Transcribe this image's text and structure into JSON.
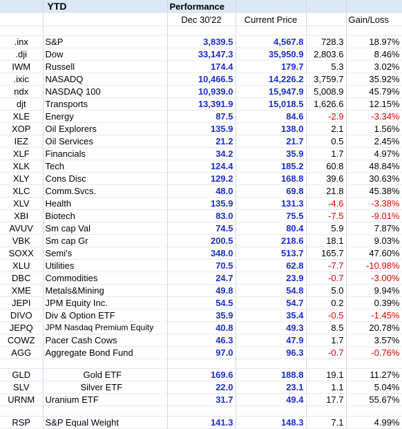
{
  "header": {
    "title": "YTD",
    "performance": "Performance",
    "col_start": "Dec 30'22",
    "col_current": "Current Price",
    "col_gainloss": "Gain/Loss"
  },
  "rows": [
    {
      "ticker": ".inx",
      "name": "S&P",
      "start": "3,839.5",
      "current": "4,567.8",
      "change": "728.3",
      "pct": "18.97%"
    },
    {
      "ticker": ".dji",
      "name": "Dow",
      "start": "33,147.3",
      "current": "35,950.9",
      "change": "2,803.6",
      "pct": "8.46%"
    },
    {
      "ticker": "IWM",
      "name": "Russell",
      "start": "174.4",
      "current": "179.7",
      "change": "5.3",
      "pct": "3.02%"
    },
    {
      "ticker": ".ixic",
      "name": "NASADQ",
      "start": "10,466.5",
      "current": "14,226.2",
      "change": "3,759.7",
      "pct": "35.92%"
    },
    {
      "ticker": "ndx",
      "name": "NASDAQ 100",
      "start": "10,939.0",
      "current": "15,947.9",
      "change": "5,008.9",
      "pct": "45.79%"
    },
    {
      "ticker": "djt",
      "name": "Transports",
      "start": "13,391.9",
      "current": "15,018.5",
      "change": "1,626.6",
      "pct": "12.15%"
    },
    {
      "ticker": "XLE",
      "name": "Energy",
      "start": "87.5",
      "current": "84.6",
      "change": "-2.9",
      "pct": "-3.34%"
    },
    {
      "ticker": "XOP",
      "name": "Oil Explorers",
      "start": "135.9",
      "current": "138.0",
      "change": "2.1",
      "pct": "1.56%"
    },
    {
      "ticker": "IEZ",
      "name": "Oil Services",
      "start": "21.2",
      "current": "21.7",
      "change": "0.5",
      "pct": "2.45%"
    },
    {
      "ticker": "XLF",
      "name": "Financials",
      "start": "34.2",
      "current": "35.9",
      "change": "1.7",
      "pct": "4.97%"
    },
    {
      "ticker": "XLK",
      "name": "Tech",
      "start": "124.4",
      "current": "185.2",
      "change": "60.8",
      "pct": "48.84%"
    },
    {
      "ticker": "XLY",
      "name": "Cons Disc",
      "start": "129.2",
      "current": "168.8",
      "change": "39.6",
      "pct": "30.63%"
    },
    {
      "ticker": "XLC",
      "name": "Comm.Svcs.",
      "start": "48.0",
      "current": "69.8",
      "change": "21.8",
      "pct": "45.38%"
    },
    {
      "ticker": "XLV",
      "name": "Health",
      "start": "135.9",
      "current": "131.3",
      "change": "-4.6",
      "pct": "-3.38%"
    },
    {
      "ticker": "XBI",
      "name": "Biotech",
      "start": "83.0",
      "current": "75.5",
      "change": "-7.5",
      "pct": "-9.01%"
    },
    {
      "ticker": "AVUV",
      "name": "Sm cap Val",
      "start": "74.5",
      "current": "80.4",
      "change": "5.9",
      "pct": "7.87%"
    },
    {
      "ticker": "VBK",
      "name": "Sm cap Gr",
      "start": "200.5",
      "current": "218.6",
      "change": "18.1",
      "pct": "9.03%"
    },
    {
      "ticker": "SOXX",
      "name": "Semi's",
      "start": "348.0",
      "current": "513.7",
      "change": "165.7",
      "pct": "47.60%"
    },
    {
      "ticker": "XLU",
      "name": "Utilities",
      "start": "70.5",
      "current": "62.8",
      "change": "-7.7",
      "pct": "-10.98%"
    },
    {
      "ticker": "DBC",
      "name": "Commodities",
      "start": "24.7",
      "current": "23.9",
      "change": "-0.7",
      "pct": "-3.00%"
    },
    {
      "ticker": "XME",
      "name": "Metals&Mining",
      "start": "49.8",
      "current": "54.8",
      "change": "5.0",
      "pct": "9.94%"
    },
    {
      "ticker": "JEPI",
      "name": "JPM  Equity Inc.",
      "start": "54.5",
      "current": "54.7",
      "change": "0.2",
      "pct": "0.39%"
    },
    {
      "ticker": "DIVO",
      "name": "Div & Option ETF",
      "start": "35.9",
      "current": "35.4",
      "change": "-0.5",
      "pct": "-1.45%"
    },
    {
      "ticker": "JEPQ",
      "name": "JPM Nasdaq Premium Equity",
      "start": "40.8",
      "current": "49.3",
      "change": "8.5",
      "pct": "20.78%"
    },
    {
      "ticker": "COWZ",
      "name": "Pacer Cash Cows",
      "start": "46.3",
      "current": "47.9",
      "change": "1.7",
      "pct": "3.57%"
    },
    {
      "ticker": "AGG",
      "name": "Aggregate Bond Fund",
      "start": "97.0",
      "current": "96.3",
      "change": "-0.7",
      "pct": "-0.76%"
    },
    {
      "ticker": "GLD",
      "name": "Gold ETF",
      "start": "169.6",
      "current": "188.8",
      "change": "19.1",
      "pct": "11.27%"
    },
    {
      "ticker": "SLV",
      "name": "Silver ETF",
      "start": "22.0",
      "current": "23.1",
      "change": "1.1",
      "pct": "5.04%"
    },
    {
      "ticker": "URNM",
      "name": "Uranium ETF",
      "start": "31.7",
      "current": "49.4",
      "change": "17.7",
      "pct": "55.67%"
    },
    {
      "ticker": "RSP",
      "name": "S&P Equal Weight",
      "start": "141.3",
      "current": "148.3",
      "change": "7.1",
      "pct": "4.99%"
    }
  ],
  "colors": {
    "header_band": "#dce8f8",
    "price_blue": "#1c2dd0",
    "negative_red": "#e00000"
  }
}
